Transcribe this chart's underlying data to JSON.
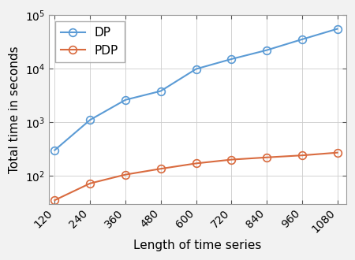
{
  "x": [
    120,
    240,
    360,
    480,
    600,
    720,
    840,
    960,
    1080
  ],
  "dp_y": [
    300,
    1100,
    2600,
    3800,
    9800,
    15000,
    22000,
    35000,
    55000
  ],
  "pdp_y": [
    35,
    72,
    105,
    135,
    170,
    200,
    220,
    240,
    270
  ],
  "dp_color": "#5B9BD5",
  "pdp_color": "#D96B3F",
  "dp_label": "DP",
  "pdp_label": "PDP",
  "xlabel": "Length of time series",
  "ylabel": "Total time in seconds",
  "ylim": [
    30,
    100000
  ],
  "xlim": [
    100,
    1110
  ],
  "xticks": [
    120,
    240,
    360,
    480,
    600,
    720,
    840,
    960,
    1080
  ],
  "yticks": [
    100,
    1000,
    10000,
    100000
  ],
  "bg_color": "#F2F2F2",
  "plot_bg_color": "#FFFFFF",
  "axis_fontsize": 11,
  "tick_fontsize": 10,
  "legend_fontsize": 11,
  "linewidth": 1.5,
  "markersize": 7
}
